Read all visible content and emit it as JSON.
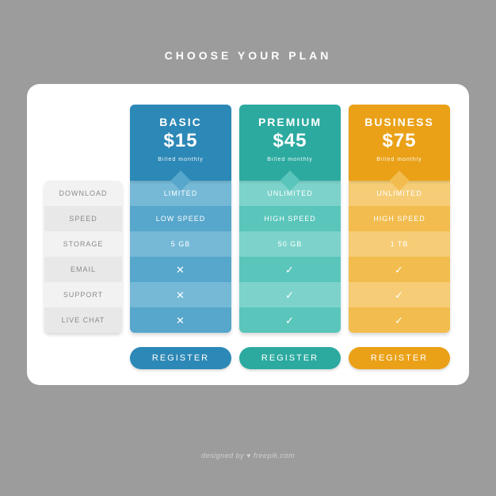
{
  "page": {
    "title": "CHOOSE YOUR PLAN",
    "background_color": "#9c9c9c",
    "card_background": "#ffffff",
    "attribution": "designed by ♥ freepik.com"
  },
  "features": {
    "labels": [
      "DOWNLOAD",
      "SPEED",
      "STORAGE",
      "EMAIL",
      "SUPPORT",
      "LIVE CHAT"
    ],
    "stripe_colors": [
      "#f2f2f2",
      "#e8e8e8"
    ],
    "text_color": "#8a8a8a"
  },
  "register_label": "REGISTER",
  "plans": [
    {
      "name": "BASIC",
      "price": "$15",
      "billing": "Billed monthly",
      "head_color": "#2c88b6",
      "notch_color": "#57a6cb",
      "stripe_colors": [
        "#75b9d7",
        "#57a6cb"
      ],
      "button_color": "#2c88b6",
      "text_color": "#ffffff",
      "cells": [
        {
          "type": "text",
          "value": "LIMITED"
        },
        {
          "type": "text",
          "value": "LOW SPEED"
        },
        {
          "type": "text",
          "value": "5 GB"
        },
        {
          "type": "cross"
        },
        {
          "type": "cross"
        },
        {
          "type": "cross"
        }
      ]
    },
    {
      "name": "PREMIUM",
      "price": "$45",
      "billing": "Billed monthly",
      "head_color": "#2caaa0",
      "notch_color": "#5ac5bb",
      "stripe_colors": [
        "#7dd3cb",
        "#5ac5bb"
      ],
      "button_color": "#2caaa0",
      "text_color": "#ffffff",
      "cells": [
        {
          "type": "text",
          "value": "UNLIMITED"
        },
        {
          "type": "text",
          "value": "HIGH SPEED"
        },
        {
          "type": "text",
          "value": "50 GB"
        },
        {
          "type": "check"
        },
        {
          "type": "check"
        },
        {
          "type": "check"
        }
      ]
    },
    {
      "name": "BUSINESS",
      "price": "$75",
      "billing": "Billed monthly",
      "head_color": "#eaa117",
      "notch_color": "#f2bc4e",
      "stripe_colors": [
        "#f6cd76",
        "#f2bc4e"
      ],
      "button_color": "#eaa117",
      "text_color": "#ffffff",
      "cells": [
        {
          "type": "text",
          "value": "UNLIMITED"
        },
        {
          "type": "text",
          "value": "HIGH SPEED"
        },
        {
          "type": "text",
          "value": "1 TB"
        },
        {
          "type": "check"
        },
        {
          "type": "check"
        },
        {
          "type": "check"
        }
      ]
    }
  ]
}
